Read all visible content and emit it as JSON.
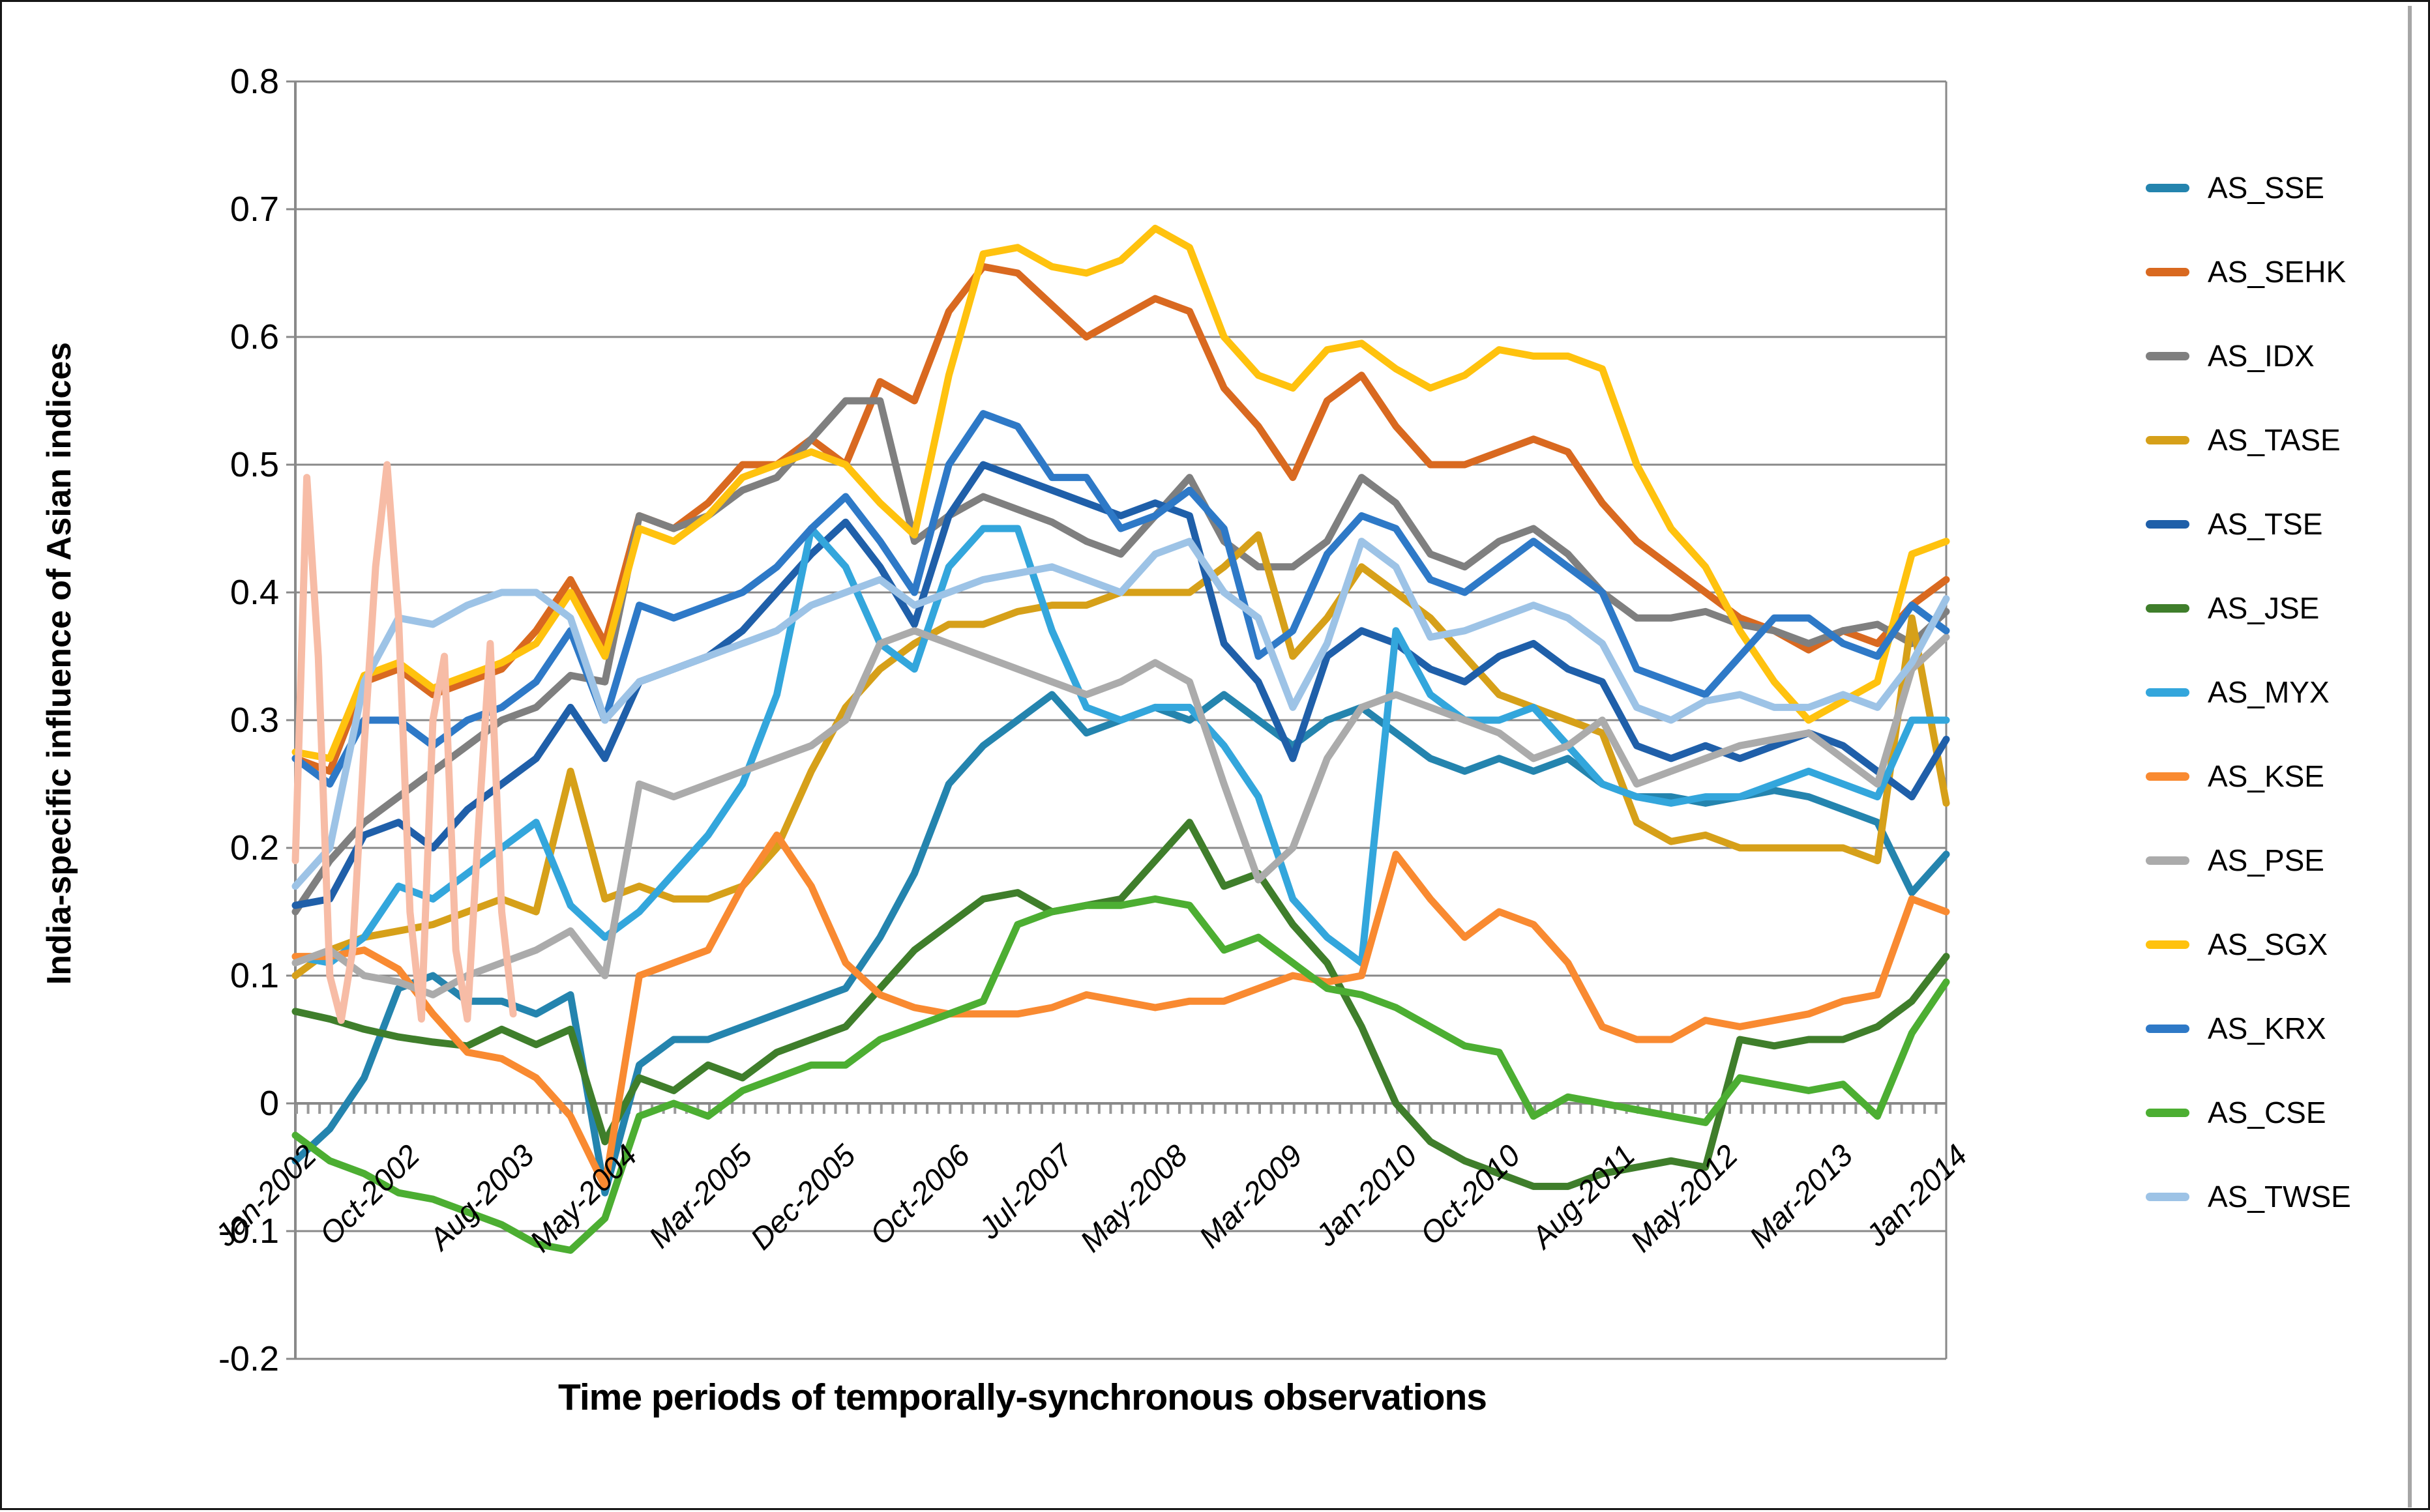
{
  "y_axis": {
    "title": "India-specific influence of Asian indices",
    "ticks": [
      {
        "label": "0.8",
        "value": 0.8
      },
      {
        "label": "0.7",
        "value": 0.7
      },
      {
        "label": "0.6",
        "value": 0.6
      },
      {
        "label": "0.5",
        "value": 0.5
      },
      {
        "label": "0.4",
        "value": 0.4
      },
      {
        "label": "0.3",
        "value": 0.3
      },
      {
        "label": "0.2",
        "value": 0.2
      },
      {
        "label": "0.1",
        "value": 0.1
      },
      {
        "label": "0",
        "value": 0.0
      },
      {
        "label": "-0.1",
        "value": -0.1
      },
      {
        "label": "-0.2",
        "value": -0.2
      }
    ]
  },
  "x_axis": {
    "title": "Time periods of temporally-synchronous observations",
    "tick_labels": [
      {
        "label": "Jan-2002",
        "month": 0
      },
      {
        "label": "Oct-2002",
        "month": 9
      },
      {
        "label": "Aug-2003",
        "month": 19
      },
      {
        "label": "May-2004",
        "month": 28
      },
      {
        "label": "Mar-2005",
        "month": 38
      },
      {
        "label": "Dec-2005",
        "month": 47
      },
      {
        "label": "Oct-2006",
        "month": 57
      },
      {
        "label": "Jul-2007",
        "month": 66
      },
      {
        "label": "May-2008",
        "month": 76
      },
      {
        "label": "Mar-2009",
        "month": 86
      },
      {
        "label": "Jan-2010",
        "month": 96
      },
      {
        "label": "Oct-2010",
        "month": 105
      },
      {
        "label": "Aug-2011",
        "month": 115
      },
      {
        "label": "May-2012",
        "month": 124
      },
      {
        "label": "Mar-2013",
        "month": 134
      },
      {
        "label": "Jan-2014",
        "month": 144
      }
    ]
  },
  "legend": {
    "items": [
      {
        "label": "AS_SSE",
        "color": "#2484AE"
      },
      {
        "label": "AS_SEHK",
        "color": "#D96920"
      },
      {
        "label": "AS_IDX",
        "color": "#7F7F7F"
      },
      {
        "label": "AS_TASE",
        "color": "#D6A019"
      },
      {
        "label": "AS_TSE",
        "color": "#1F5FA9"
      },
      {
        "label": "AS_JSE",
        "color": "#3F7E2B"
      },
      {
        "label": "AS_MYX",
        "color": "#33A6DC"
      },
      {
        "label": "AS_KSE",
        "color": "#F98A31"
      },
      {
        "label": "AS_PSE",
        "color": "#ABABAB"
      },
      {
        "label": "AS_SGX",
        "color": "#FFC20E"
      },
      {
        "label": "AS_KRX",
        "color": "#2E79C7"
      },
      {
        "label": "AS_CSE",
        "color": "#4CAE32"
      },
      {
        "label": "AS_TWSE",
        "color": "#9DC3E6"
      }
    ]
  },
  "chart_data": {
    "type": "line",
    "title": "",
    "xlabel": "Time periods of temporally-synchronous observations",
    "ylabel": "India-specific influence of Asian indices",
    "ylim": [
      -0.2,
      0.8
    ],
    "x_unit": "months since Jan-2002",
    "x_range_months": [
      0,
      144
    ],
    "grid": true,
    "legend_position": "right",
    "quarter_months": [
      0,
      3,
      6,
      9,
      12,
      15,
      18,
      21,
      24,
      27,
      30,
      33,
      36,
      39,
      42,
      45,
      48,
      51,
      54,
      57,
      60,
      63,
      66,
      69,
      72,
      75,
      78,
      81,
      84,
      87,
      90,
      93,
      96,
      99,
      102,
      105,
      108,
      111,
      114,
      117,
      120,
      123,
      126,
      129,
      132,
      135,
      138,
      141,
      144
    ],
    "series": [
      {
        "name": "AS_SSE",
        "color": "#2484AE",
        "in_legend": true,
        "values": [
          -0.045,
          -0.02,
          0.02,
          0.09,
          0.1,
          0.08,
          0.08,
          0.07,
          0.085,
          -0.07,
          0.03,
          0.05,
          0.05,
          0.06,
          0.07,
          0.08,
          0.09,
          0.13,
          0.18,
          0.25,
          0.28,
          0.3,
          0.32,
          0.29,
          0.3,
          0.31,
          0.3,
          0.32,
          0.3,
          0.28,
          0.3,
          0.31,
          0.29,
          0.27,
          0.26,
          0.27,
          0.26,
          0.27,
          0.25,
          0.24,
          0.24,
          0.235,
          0.24,
          0.245,
          0.24,
          0.23,
          0.22,
          0.165,
          0.195
        ]
      },
      {
        "name": "AS_SEHK",
        "color": "#D96920",
        "in_legend": true,
        "values": [
          0.27,
          0.26,
          0.33,
          0.34,
          0.32,
          0.33,
          0.34,
          0.37,
          0.41,
          0.36,
          0.46,
          0.45,
          0.47,
          0.5,
          0.5,
          0.52,
          0.5,
          0.565,
          0.55,
          0.62,
          0.655,
          0.65,
          0.625,
          0.6,
          0.615,
          0.63,
          0.62,
          0.56,
          0.53,
          0.49,
          0.55,
          0.57,
          0.53,
          0.5,
          0.5,
          0.51,
          0.52,
          0.51,
          0.47,
          0.44,
          0.42,
          0.4,
          0.38,
          0.37,
          0.355,
          0.37,
          0.36,
          0.39,
          0.41
        ]
      },
      {
        "name": "AS_IDX",
        "color": "#7F7F7F",
        "in_legend": true,
        "values": [
          0.15,
          0.19,
          0.22,
          0.24,
          0.26,
          0.28,
          0.3,
          0.31,
          0.335,
          0.33,
          0.46,
          0.45,
          0.46,
          0.48,
          0.49,
          0.52,
          0.55,
          0.55,
          0.44,
          0.46,
          0.475,
          0.465,
          0.455,
          0.44,
          0.43,
          0.46,
          0.49,
          0.44,
          0.42,
          0.42,
          0.44,
          0.49,
          0.47,
          0.43,
          0.42,
          0.44,
          0.45,
          0.43,
          0.4,
          0.38,
          0.38,
          0.385,
          0.375,
          0.37,
          0.36,
          0.37,
          0.375,
          0.36,
          0.385
        ]
      },
      {
        "name": "AS_TASE",
        "color": "#D6A019",
        "in_legend": true,
        "values": [
          0.1,
          0.12,
          0.13,
          0.135,
          0.14,
          0.15,
          0.16,
          0.15,
          0.26,
          0.16,
          0.17,
          0.16,
          0.16,
          0.17,
          0.2,
          0.26,
          0.31,
          0.34,
          0.36,
          0.375,
          0.375,
          0.385,
          0.39,
          0.39,
          0.4,
          0.4,
          0.4,
          0.42,
          0.445,
          0.35,
          0.38,
          0.42,
          0.4,
          0.38,
          0.35,
          0.32,
          0.31,
          0.3,
          0.29,
          0.22,
          0.205,
          0.21,
          0.2,
          0.2,
          0.2,
          0.2,
          0.19,
          0.38,
          0.235
        ]
      },
      {
        "name": "AS_TSE",
        "color": "#1F5FA9",
        "in_legend": true,
        "values": [
          0.155,
          0.16,
          0.21,
          0.22,
          0.2,
          0.23,
          0.25,
          0.27,
          0.31,
          0.27,
          0.33,
          0.34,
          0.35,
          0.37,
          0.4,
          0.43,
          0.455,
          0.42,
          0.375,
          0.46,
          0.5,
          0.49,
          0.48,
          0.47,
          0.46,
          0.47,
          0.46,
          0.36,
          0.33,
          0.27,
          0.35,
          0.37,
          0.36,
          0.34,
          0.33,
          0.35,
          0.36,
          0.34,
          0.33,
          0.28,
          0.27,
          0.28,
          0.27,
          0.28,
          0.29,
          0.28,
          0.26,
          0.24,
          0.285
        ]
      },
      {
        "name": "AS_JSE",
        "color": "#3F7E2B",
        "in_legend": true,
        "values": [
          0.072,
          0.066,
          0.058,
          0.052,
          0.048,
          0.045,
          0.058,
          0.046,
          0.058,
          -0.03,
          0.02,
          0.01,
          0.03,
          0.02,
          0.04,
          0.05,
          0.06,
          0.09,
          0.12,
          0.14,
          0.16,
          0.165,
          0.15,
          0.155,
          0.16,
          0.19,
          0.22,
          0.17,
          0.18,
          0.14,
          0.11,
          0.06,
          0.0,
          -0.03,
          -0.045,
          -0.055,
          -0.065,
          -0.065,
          -0.055,
          -0.05,
          -0.045,
          -0.05,
          0.05,
          0.045,
          0.05,
          0.05,
          0.06,
          0.08,
          0.115
        ]
      },
      {
        "name": "AS_MYX",
        "color": "#33A6DC",
        "in_legend": true,
        "values": [
          0.115,
          0.11,
          0.13,
          0.17,
          0.16,
          0.18,
          0.2,
          0.22,
          0.155,
          0.13,
          0.15,
          0.18,
          0.21,
          0.25,
          0.32,
          0.45,
          0.42,
          0.36,
          0.34,
          0.42,
          0.45,
          0.45,
          0.37,
          0.31,
          0.3,
          0.31,
          0.31,
          0.28,
          0.24,
          0.16,
          0.13,
          0.11,
          0.37,
          0.32,
          0.3,
          0.3,
          0.31,
          0.28,
          0.25,
          0.24,
          0.235,
          0.24,
          0.24,
          0.25,
          0.26,
          0.25,
          0.24,
          0.3,
          0.3
        ]
      },
      {
        "name": "AS_KSE",
        "color": "#F98A31",
        "in_legend": true,
        "values": [
          0.115,
          0.115,
          0.12,
          0.105,
          0.07,
          0.04,
          0.035,
          0.02,
          -0.01,
          -0.065,
          0.1,
          0.11,
          0.12,
          0.17,
          0.21,
          0.17,
          0.11,
          0.085,
          0.075,
          0.07,
          0.07,
          0.07,
          0.075,
          0.085,
          0.08,
          0.075,
          0.08,
          0.08,
          0.09,
          0.1,
          0.095,
          0.1,
          0.195,
          0.16,
          0.13,
          0.15,
          0.14,
          0.11,
          0.06,
          0.05,
          0.05,
          0.065,
          0.06,
          0.065,
          0.07,
          0.08,
          0.085,
          0.16,
          0.15
        ]
      },
      {
        "name": "AS_PSE",
        "color": "#ABABAB",
        "in_legend": true,
        "values": [
          0.11,
          0.12,
          0.1,
          0.095,
          0.085,
          0.1,
          0.11,
          0.12,
          0.135,
          0.1,
          0.25,
          0.24,
          0.25,
          0.26,
          0.27,
          0.28,
          0.3,
          0.36,
          0.37,
          0.36,
          0.35,
          0.34,
          0.33,
          0.32,
          0.33,
          0.345,
          0.33,
          0.25,
          0.175,
          0.2,
          0.27,
          0.31,
          0.32,
          0.31,
          0.3,
          0.29,
          0.27,
          0.28,
          0.3,
          0.25,
          0.26,
          0.27,
          0.28,
          0.285,
          0.29,
          0.27,
          0.25,
          0.34,
          0.365
        ]
      },
      {
        "name": "AS_SGX",
        "color": "#FFC20E",
        "in_legend": true,
        "values": [
          0.275,
          0.27,
          0.335,
          0.345,
          0.325,
          0.335,
          0.345,
          0.36,
          0.4,
          0.35,
          0.45,
          0.44,
          0.46,
          0.49,
          0.5,
          0.51,
          0.5,
          0.47,
          0.445,
          0.57,
          0.665,
          0.67,
          0.655,
          0.65,
          0.66,
          0.685,
          0.67,
          0.6,
          0.57,
          0.56,
          0.59,
          0.595,
          0.575,
          0.56,
          0.57,
          0.59,
          0.585,
          0.585,
          0.575,
          0.5,
          0.45,
          0.42,
          0.37,
          0.33,
          0.3,
          0.315,
          0.33,
          0.43,
          0.44
        ]
      },
      {
        "name": "AS_KRX",
        "color": "#2E79C7",
        "in_legend": true,
        "values": [
          0.27,
          0.25,
          0.3,
          0.3,
          0.28,
          0.3,
          0.31,
          0.33,
          0.37,
          0.3,
          0.39,
          0.38,
          0.39,
          0.4,
          0.42,
          0.45,
          0.475,
          0.44,
          0.4,
          0.5,
          0.54,
          0.53,
          0.49,
          0.49,
          0.45,
          0.46,
          0.48,
          0.45,
          0.35,
          0.37,
          0.43,
          0.46,
          0.45,
          0.41,
          0.4,
          0.42,
          0.44,
          0.42,
          0.4,
          0.34,
          0.33,
          0.32,
          0.35,
          0.38,
          0.38,
          0.36,
          0.35,
          0.39,
          0.37
        ]
      },
      {
        "name": "AS_CSE",
        "color": "#4CAE32",
        "in_legend": true,
        "values": [
          -0.025,
          -0.045,
          -0.055,
          -0.07,
          -0.075,
          -0.085,
          -0.095,
          -0.11,
          -0.115,
          -0.09,
          -0.01,
          0.0,
          -0.01,
          0.01,
          0.02,
          0.03,
          0.03,
          0.05,
          0.06,
          0.07,
          0.08,
          0.14,
          0.15,
          0.155,
          0.155,
          0.16,
          0.155,
          0.12,
          0.13,
          0.11,
          0.09,
          0.085,
          0.075,
          0.06,
          0.045,
          0.04,
          -0.01,
          0.005,
          0.0,
          -0.005,
          -0.01,
          -0.015,
          0.02,
          0.015,
          0.01,
          0.015,
          -0.01,
          0.055,
          0.095
        ]
      },
      {
        "name": "AS_TWSE",
        "color": "#9DC3E6",
        "in_legend": true,
        "values": [
          0.17,
          0.2,
          0.33,
          0.38,
          0.375,
          0.39,
          0.4,
          0.4,
          0.38,
          0.3,
          0.33,
          0.34,
          0.35,
          0.36,
          0.37,
          0.39,
          0.4,
          0.41,
          0.39,
          0.4,
          0.41,
          0.415,
          0.42,
          0.41,
          0.4,
          0.43,
          0.44,
          0.4,
          0.38,
          0.31,
          0.36,
          0.44,
          0.42,
          0.365,
          0.37,
          0.38,
          0.39,
          0.38,
          0.36,
          0.31,
          0.3,
          0.315,
          0.32,
          0.31,
          0.31,
          0.32,
          0.31,
          0.345,
          0.395
        ]
      },
      {
        "name": "unlabeled_salmon_series",
        "color": "#F7BCA6",
        "in_legend": false,
        "x_months": [
          0,
          1,
          2,
          3,
          4,
          5,
          6,
          7,
          8,
          9,
          10,
          11,
          12,
          13,
          14,
          15,
          16,
          17,
          18,
          19
        ],
        "values": [
          0.19,
          0.49,
          0.35,
          0.1,
          0.065,
          0.12,
          0.28,
          0.42,
          0.5,
          0.38,
          0.15,
          0.066,
          0.3,
          0.35,
          0.12,
          0.066,
          0.22,
          0.36,
          0.15,
          0.07
        ]
      }
    ]
  }
}
